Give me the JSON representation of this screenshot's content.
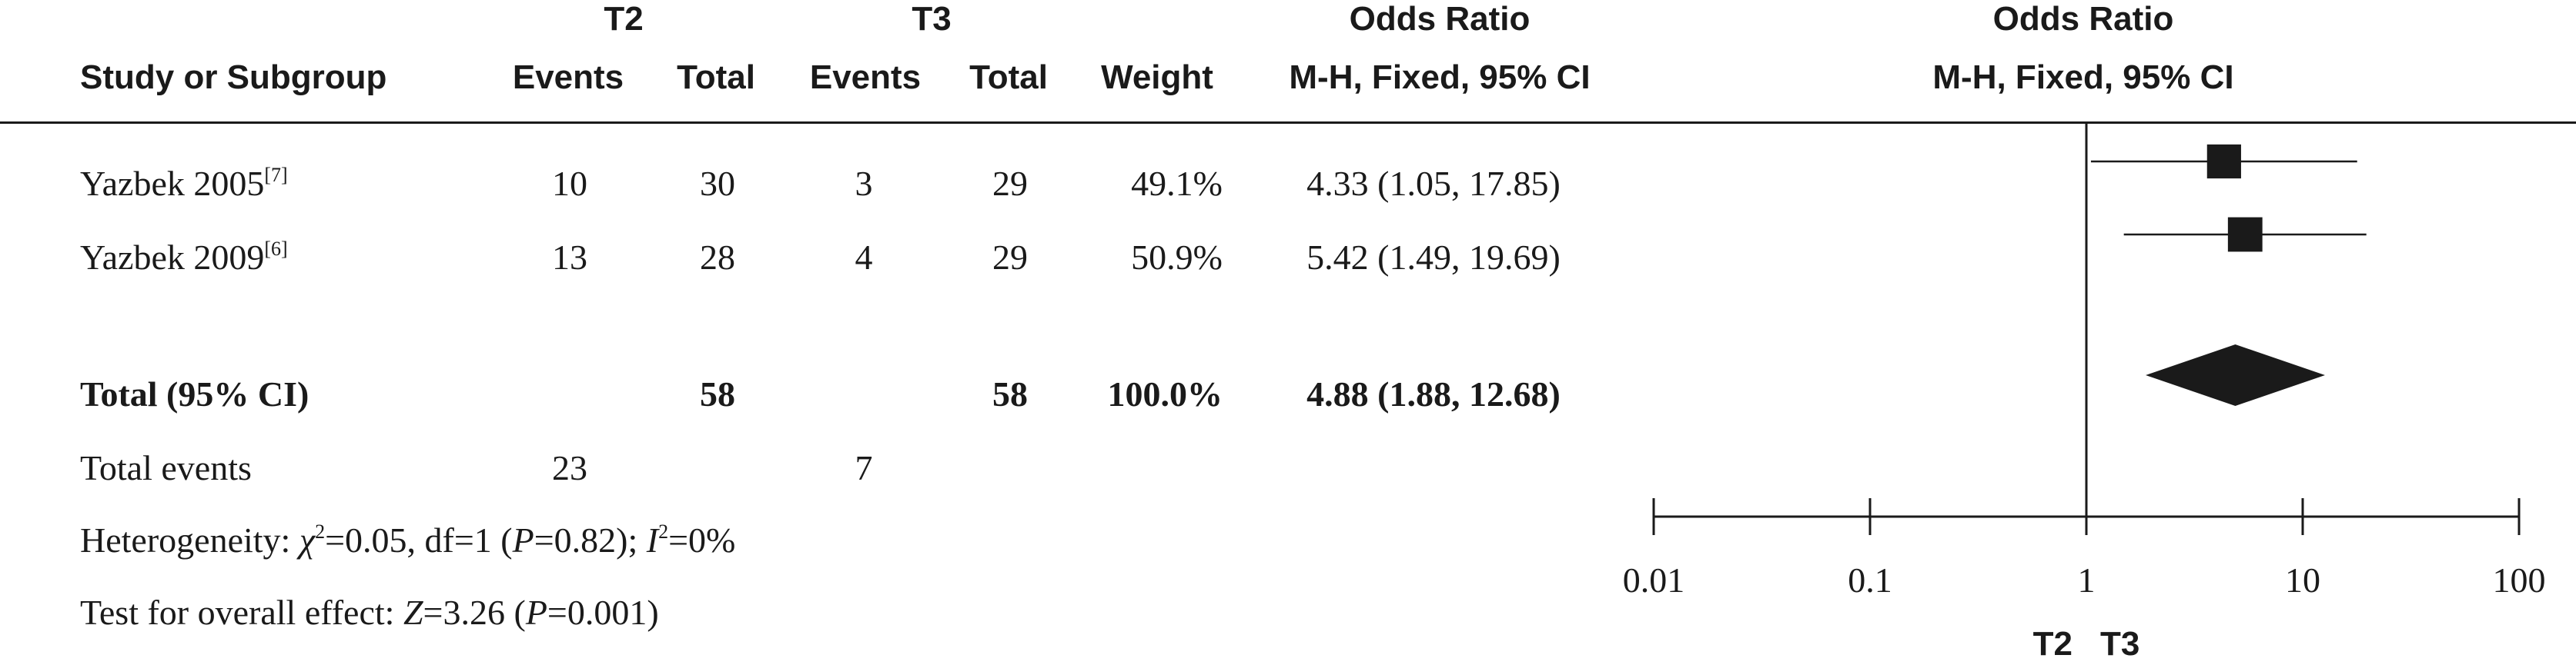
{
  "header": {
    "group1": "T2",
    "group2": "T3",
    "study_col": "Study or Subgroup",
    "events_label": "Events",
    "total_label": "Total",
    "weight_label": "Weight",
    "or_title": "Odds Ratio",
    "or_method": "M-H, Fixed, 95% CI",
    "plot_title": "Odds Ratio",
    "plot_method": "M-H, Fixed, 95% CI"
  },
  "studies": [
    {
      "name": "Yazbek 2005",
      "ref": "[7]",
      "e1": "10",
      "t1": "30",
      "e2": "3",
      "t2": "29",
      "weight": "49.1%",
      "ci_text": "4.33 (1.05, 17.85)"
    },
    {
      "name": "Yazbek 2009",
      "ref": "[6]",
      "e1": "13",
      "t1": "28",
      "e2": "4",
      "t2": "29",
      "weight": "50.9%",
      "ci_text": "5.42 (1.49, 19.69)"
    }
  ],
  "total": {
    "label": "Total (95% CI)",
    "t1": "58",
    "t2": "58",
    "weight": "100.0%",
    "ci_text": "4.88 (1.88, 12.68)"
  },
  "total_events": {
    "label": "Total events",
    "e1": "23",
    "e2": "7"
  },
  "heterogeneity": {
    "prefix": "Heterogeneity: ",
    "chi_sym": "χ",
    "chi_rest": "=0.05, df=1 (",
    "p_sym": "P",
    "p_rest": "=0.82); ",
    "i_sym": "I",
    "i_rest": "=0%"
  },
  "overall_effect": {
    "prefix": "Test for overall effect: ",
    "z_sym": "Z",
    "z_rest": "=3.26 (",
    "p_sym": "P",
    "p_rest": "=0.001)"
  },
  "chart_data": {
    "type": "forest",
    "scale": "log",
    "xlim": [
      0.01,
      100
    ],
    "ticks": [
      0.01,
      0.1,
      1,
      10,
      100
    ],
    "tick_labels": [
      "0.01",
      "0.1",
      "1",
      "10",
      "100"
    ],
    "null_value": 1,
    "studies": [
      {
        "name": "Yazbek 2005",
        "or": 4.33,
        "lower": 1.05,
        "upper": 17.85,
        "weight": 49.1
      },
      {
        "name": "Yazbek 2009",
        "or": 5.42,
        "lower": 1.49,
        "upper": 19.69,
        "weight": 50.9
      }
    ],
    "pooled": {
      "or": 4.88,
      "lower": 1.88,
      "upper": 12.68
    },
    "favours_left": "T2",
    "favours_right": "T3",
    "color": "#1a1a1a"
  }
}
